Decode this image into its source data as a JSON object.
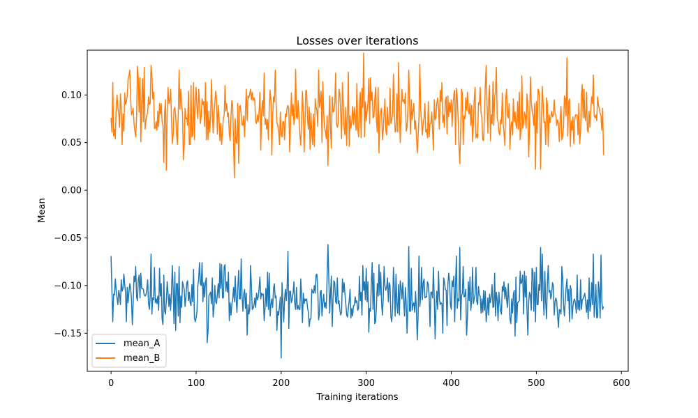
{
  "chart_data": {
    "type": "line",
    "title": "Losses over iterations",
    "xlabel": "Training iterations",
    "ylabel": "Mean",
    "xlim": [
      -28,
      608
    ],
    "ylim": [
      -0.19,
      0.147
    ],
    "x_ticks": [
      0,
      100,
      200,
      300,
      400,
      500,
      600
    ],
    "x_tick_labels": [
      "0",
      "100",
      "200",
      "300",
      "400",
      "500",
      "600"
    ],
    "y_ticks": [
      -0.15,
      -0.1,
      -0.05,
      0.0,
      0.05,
      0.1
    ],
    "y_tick_labels": [
      "−0.15",
      "−0.10",
      "−0.05",
      "0.00",
      "0.05",
      "0.10"
    ],
    "grid": false,
    "legend_placement": "lower-left",
    "x_range": [
      0,
      579
    ],
    "series": [
      {
        "name": "mean_A",
        "color": "#1f77b4",
        "seed": 12345,
        "noise_std": 0.017,
        "keypoints": [
          [
            0,
            -0.069
          ],
          [
            2,
            -0.138
          ],
          [
            4,
            -0.11
          ],
          [
            47,
            -0.067
          ],
          [
            60,
            -0.135
          ],
          [
            80,
            -0.08
          ],
          [
            113,
            -0.16
          ],
          [
            200,
            -0.176
          ],
          [
            255,
            -0.057
          ],
          [
            300,
            -0.082
          ],
          [
            350,
            -0.059
          ],
          [
            390,
            -0.15
          ],
          [
            410,
            -0.06
          ],
          [
            475,
            -0.153
          ],
          [
            500,
            -0.081
          ],
          [
            505,
            -0.06
          ],
          [
            567,
            -0.067
          ],
          [
            575,
            -0.134
          ],
          [
            579,
            -0.122
          ]
        ],
        "mean": -0.113,
        "values": []
      },
      {
        "name": "mean_B",
        "color": "#ff7f0e",
        "seed": 67890,
        "noise_std": 0.02,
        "keypoints": [
          [
            0,
            0.076
          ],
          [
            2,
            0.113
          ],
          [
            5,
            0.054
          ],
          [
            47,
            0.131
          ],
          [
            80,
            0.126
          ],
          [
            150,
            0.028
          ],
          [
            193,
            0.126
          ],
          [
            255,
            0.026
          ],
          [
            300,
            0.073
          ],
          [
            350,
            0.126
          ],
          [
            410,
            0.028
          ],
          [
            505,
            0.022
          ],
          [
            567,
            0.121
          ],
          [
            579,
            0.037
          ]
        ],
        "mean": 0.078,
        "values": []
      }
    ]
  }
}
